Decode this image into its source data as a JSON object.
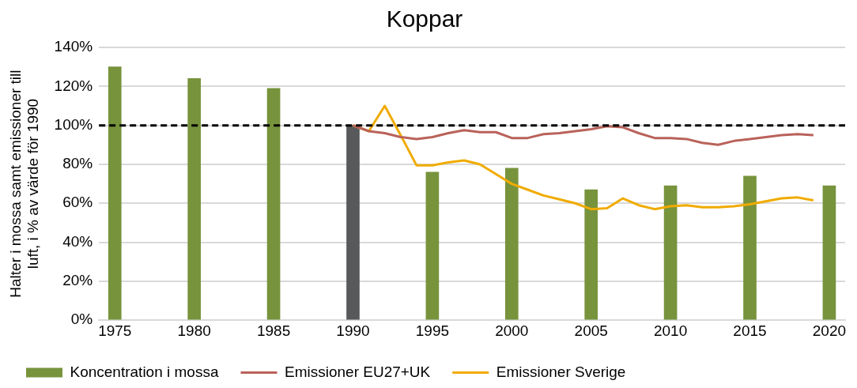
{
  "chart_data": {
    "type": "bar",
    "title": "Koppar",
    "ylabel": "Halter i mossa samt emissioner till luft, i % av värde för 1990",
    "xlim": [
      1974,
      2021
    ],
    "xticks": [
      1975,
      1980,
      1985,
      1990,
      1995,
      2000,
      2005,
      2010,
      2015,
      2020
    ],
    "ylim": [
      0,
      140
    ],
    "yticks": [
      {
        "value": 0,
        "label": "0%"
      },
      {
        "value": 20,
        "label": "20%"
      },
      {
        "value": 40,
        "label": "40%"
      },
      {
        "value": 60,
        "label": "60%"
      },
      {
        "value": 80,
        "label": "80%"
      },
      {
        "value": 100,
        "label": "100%"
      },
      {
        "value": 120,
        "label": "120%"
      },
      {
        "value": 140,
        "label": "140%"
      }
    ],
    "grid": "y",
    "legend": "bottom",
    "ref_lines": [
      {
        "axis": "y",
        "value": 100,
        "color": "#000000",
        "line_style": "dashed"
      }
    ],
    "series": [
      {
        "name": "Koncentration i mossa",
        "color": "#77933c",
        "colors": [
          "#77933c",
          "#77933c",
          "#77933c",
          "#58595b",
          "#77933c",
          "#77933c",
          "#77933c",
          "#77933c",
          "#77933c",
          "#77933c"
        ],
        "x": [
          1975,
          1980,
          1985,
          1990,
          1995,
          2000,
          2005,
          2010,
          2015,
          2020
        ],
        "values": [
          130,
          124,
          119,
          100,
          76,
          78,
          67,
          69,
          74,
          69
        ]
      },
      {
        "name": "Emissioner EU27+UK",
        "type": "line",
        "color": "#b9625a",
        "x": [
          1990,
          1991,
          1992,
          1993,
          1994,
          1995,
          1996,
          1997,
          1998,
          1999,
          2000,
          2001,
          2002,
          2003,
          2004,
          2005,
          2006,
          2007,
          2008,
          2009,
          2010,
          2011,
          2012,
          2013,
          2014,
          2015,
          2016,
          2017,
          2018,
          2019
        ],
        "values": [
          100,
          97,
          96,
          94,
          93,
          94,
          96,
          97.5,
          96.5,
          96.5,
          93.5,
          93.5,
          95.5,
          96,
          97,
          98,
          99.5,
          99,
          96,
          93.5,
          93.5,
          93,
          91,
          90,
          92,
          93,
          94,
          95,
          95.5,
          95
        ]
      },
      {
        "name": "Emissioner Sverige",
        "type": "line",
        "color": "#f0ab00",
        "x": [
          1990,
          1991,
          1992,
          1993,
          1994,
          1995,
          1996,
          1997,
          1998,
          1999,
          2000,
          2001,
          2002,
          2003,
          2004,
          2005,
          2006,
          2007,
          2008,
          2009,
          2010,
          2011,
          2012,
          2013,
          2014,
          2015,
          2016,
          2017,
          2018,
          2019
        ],
        "values": [
          100,
          97,
          110,
          95,
          79.5,
          79.5,
          81,
          82,
          80,
          75,
          70,
          67,
          64,
          62,
          60,
          57,
          57.5,
          62.5,
          59,
          57,
          58.5,
          59,
          58,
          58,
          58.5,
          59.5,
          61,
          62.5,
          63,
          61.5
        ]
      }
    ]
  }
}
